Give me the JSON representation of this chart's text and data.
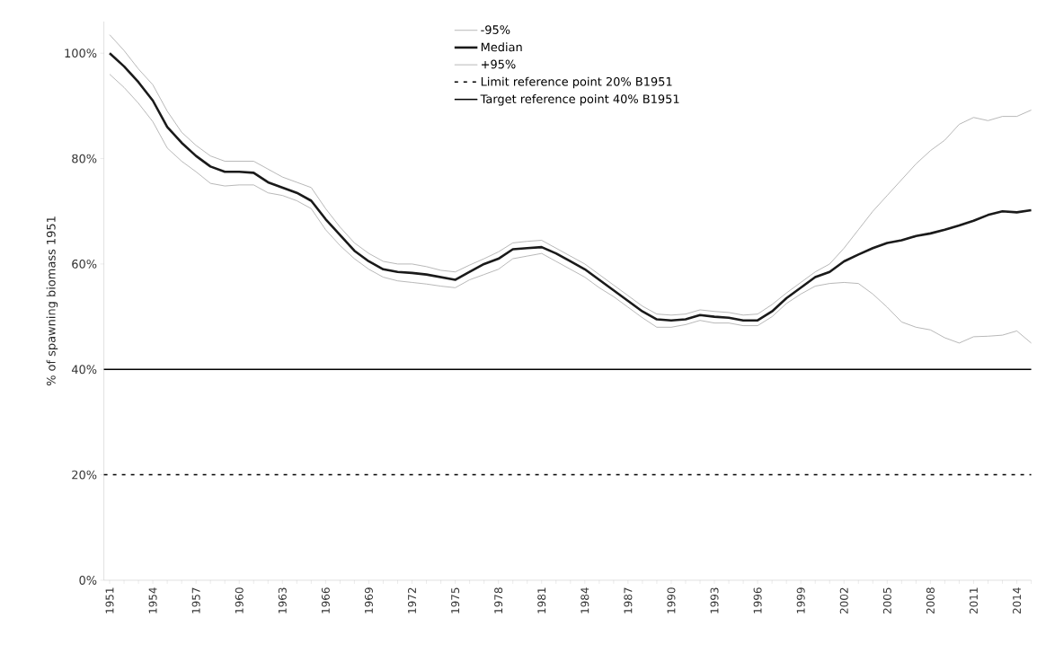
{
  "chart_data": {
    "type": "line",
    "ylabel": "% of spawning biomass 1951",
    "categories": [
      "1951",
      null,
      null,
      "1954",
      null,
      null,
      "1957",
      null,
      null,
      "1960",
      null,
      null,
      "1963",
      null,
      null,
      "1966",
      null,
      null,
      "1969",
      null,
      null,
      "1972",
      null,
      null,
      "1975",
      null,
      null,
      "1978",
      null,
      null,
      "1981",
      null,
      null,
      "1984",
      null,
      null,
      "1987",
      null,
      null,
      "1990",
      null,
      null,
      "1993",
      null,
      null,
      "1996",
      null,
      null,
      "1999",
      null,
      null,
      "2002",
      null,
      null,
      "2005",
      null,
      null,
      "2008",
      null,
      null,
      "2011",
      null,
      null,
      "2014",
      null
    ],
    "series": [
      {
        "name": "-95%",
        "color": "#a6a6a6",
        "values": [
          96,
          93.5,
          90.5,
          87,
          82,
          79.5,
          77.5,
          75.3,
          74.8,
          75,
          75,
          73.5,
          73,
          72,
          70.5,
          66.5,
          63.5,
          61,
          59,
          57.5,
          56.8,
          56.5,
          56.2,
          55.8,
          55.5,
          57,
          58,
          59,
          61,
          61.5,
          62,
          60.5,
          59,
          57.5,
          55.5,
          53.8,
          51.8,
          49.8,
          48,
          48,
          48.5,
          49.3,
          48.8,
          48.8,
          48.3,
          48.3,
          50,
          52.5,
          54.3,
          55.8,
          56.3,
          56.5,
          56.3,
          54.3,
          51.8,
          49,
          48,
          47.5,
          46,
          45,
          46.2,
          46.3,
          46.5,
          47.3,
          45
        ]
      },
      {
        "name": "Median",
        "color": "#1a1a1a",
        "values": [
          100,
          97.5,
          94.5,
          91,
          86,
          83,
          80.5,
          78.5,
          77.5,
          77.5,
          77.3,
          75.5,
          74.5,
          73.5,
          72,
          68.5,
          65.5,
          62.5,
          60.5,
          59,
          58.5,
          58.3,
          58,
          57.5,
          57,
          58.5,
          60,
          61,
          62.8,
          63,
          63.2,
          62,
          60.5,
          59,
          57,
          55,
          53,
          51,
          49.5,
          49.3,
          49.5,
          50.3,
          50,
          49.8,
          49.3,
          49.3,
          51,
          53.5,
          55.5,
          57.5,
          58.5,
          60.5,
          61.8,
          63,
          64,
          64.5,
          65.3,
          65.8,
          66.5,
          67.3,
          68.2,
          69.3,
          70,
          69.8,
          70.2
        ]
      },
      {
        "name": "+95%",
        "color": "#a6a6a6",
        "values": [
          103.5,
          100.5,
          97,
          94,
          89,
          85,
          82.5,
          80.5,
          79.5,
          79.5,
          79.5,
          78,
          76.5,
          75.5,
          74.5,
          70.5,
          67,
          64,
          62,
          60.5,
          60,
          60,
          59.5,
          58.8,
          58.5,
          59.8,
          61,
          62.3,
          64,
          64.3,
          64.5,
          63,
          61.5,
          60,
          58,
          56,
          54,
          52,
          50.5,
          50.3,
          50.5,
          51.3,
          51,
          50.8,
          50.3,
          50.5,
          52.3,
          54.5,
          56.5,
          58.5,
          60,
          63,
          66.5,
          70,
          73,
          76,
          79,
          81.5,
          83.5,
          86.5,
          87.8,
          87.2,
          88,
          88,
          89.2
        ]
      }
    ],
    "ref_lines": [
      {
        "axis": "y",
        "value": 20,
        "label": "Limit reference point 20% B1951",
        "line_style": "dashed",
        "color": "#000000"
      },
      {
        "axis": "y",
        "value": 40,
        "label": "Target reference point 40% B1951",
        "line_style": "solid",
        "color": "#000000"
      }
    ],
    "ylim": [
      0,
      106
    ],
    "yticks": [
      {
        "value": 0,
        "label": "0%"
      },
      {
        "value": 20,
        "label": "20%"
      },
      {
        "value": 40,
        "label": "40%"
      },
      {
        "value": 60,
        "label": "60%"
      },
      {
        "value": 80,
        "label": "80%"
      },
      {
        "value": 100,
        "label": "100%"
      }
    ],
    "grid": false,
    "legend": "top",
    "marker": "none",
    "line_style": "solid"
  }
}
